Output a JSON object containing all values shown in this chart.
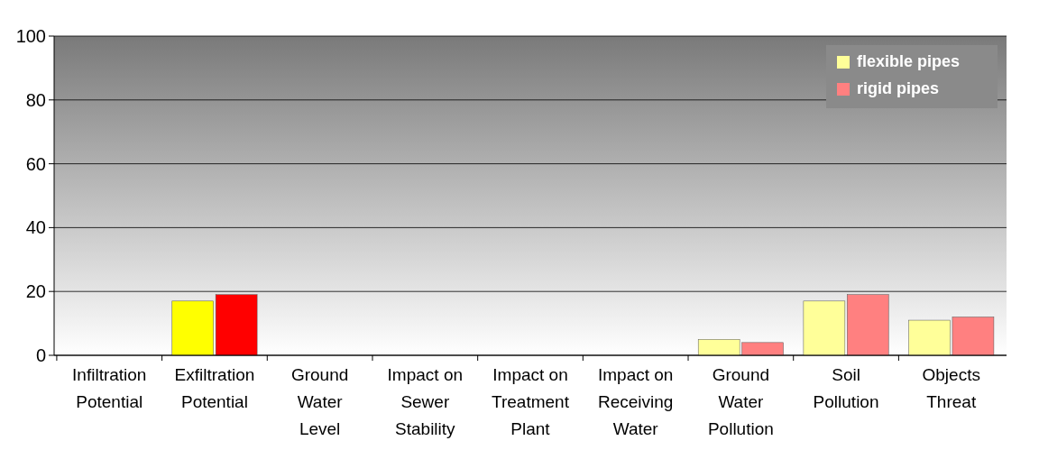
{
  "chart_data": {
    "type": "bar",
    "categories": [
      "Infiltration Potential",
      "Exfiltration Potential",
      "Ground Water Level",
      "Impact on Sewer Stability",
      "Impact on Treatment Plant",
      "Impact on Receiving Water",
      "Ground Water Pollution",
      "Soil Pollution",
      "Objects Threat"
    ],
    "series": [
      {
        "name": "flexible pipes",
        "color": "#ffff99",
        "colors": [
          null,
          "#ffff00",
          null,
          null,
          null,
          null,
          "#ffff99",
          "#ffff99",
          "#ffff99"
        ],
        "values": [
          null,
          17,
          null,
          null,
          null,
          null,
          5,
          17,
          11
        ]
      },
      {
        "name": "rigid pipes",
        "color": "#ff8080",
        "colors": [
          null,
          "#ff0000",
          null,
          null,
          null,
          null,
          "#ff8080",
          "#ff8080",
          "#ff8080"
        ],
        "values": [
          null,
          19,
          null,
          null,
          null,
          null,
          4,
          19,
          12
        ]
      }
    ],
    "ylim": [
      0,
      100
    ],
    "yticks": [
      0,
      20,
      40,
      60,
      80,
      100
    ],
    "grid": "y",
    "legend": "top right"
  }
}
